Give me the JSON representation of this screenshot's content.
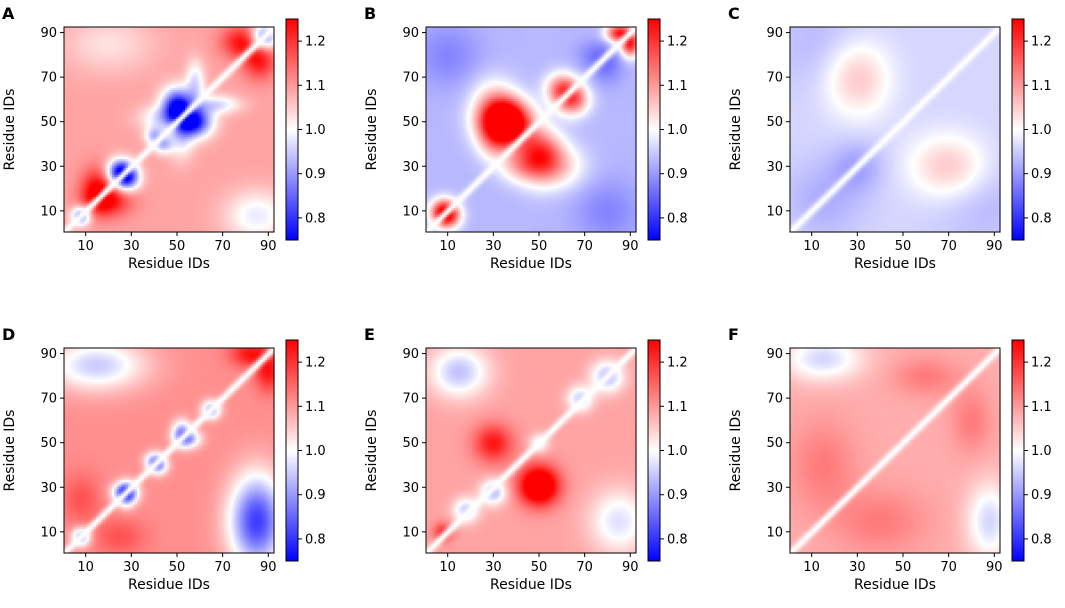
{
  "chart_data": {
    "type": "heatmap",
    "colormap": "bwr",
    "color_range": [
      0.75,
      1.25
    ],
    "colorbar_ticks": [
      "0.8",
      "0.9",
      "1.0",
      "1.1",
      "1.2"
    ],
    "colorbar_tick_values": [
      0.8,
      0.9,
      1.0,
      1.1,
      1.2
    ],
    "residue_range": [
      1,
      92
    ],
    "axis_ticks": [
      "10",
      "30",
      "50",
      "70",
      "90"
    ],
    "axis_tick_values": [
      10,
      30,
      50,
      70,
      90
    ],
    "xlabel": "Residue IDs",
    "ylabel": "Residue IDs",
    "panels": [
      {
        "label": "A",
        "base": 1.09,
        "features": [
          {
            "x": 88,
            "y": 88,
            "sx": 4,
            "sy": 4,
            "a": -0.24,
            "sym": false
          },
          {
            "x": 78,
            "y": 86,
            "sx": 6,
            "sy": 5,
            "a": 0.14,
            "sym": true
          },
          {
            "x": 68,
            "y": 58,
            "sx": 7,
            "sy": 3,
            "a": -0.12,
            "sym": true
          },
          {
            "x": 60,
            "y": 50,
            "sx": 5,
            "sy": 5,
            "a": -0.18,
            "sym": true
          },
          {
            "x": 52,
            "y": 46,
            "sx": 4,
            "sy": 8,
            "a": -0.14,
            "sym": true
          },
          {
            "x": 50,
            "y": 56,
            "sx": 4,
            "sy": 4,
            "a": -0.14,
            "sym": true
          },
          {
            "x": 40,
            "y": 44,
            "sx": 3,
            "sy": 3,
            "a": -0.14,
            "sym": true
          },
          {
            "x": 25,
            "y": 28,
            "sx": 4,
            "sy": 4,
            "a": -0.26,
            "sym": true
          },
          {
            "x": 8,
            "y": 8,
            "sx": 3,
            "sy": 3,
            "a": -0.22,
            "sym": false
          },
          {
            "x": 20,
            "y": 15,
            "sx": 7,
            "sy": 5,
            "a": 0.14,
            "sym": true
          },
          {
            "x": 85,
            "y": 8,
            "sx": 10,
            "sy": 8,
            "a": -0.11,
            "sym": false
          },
          {
            "x": 20,
            "y": 85,
            "sx": 14,
            "sy": 9,
            "a": -0.06,
            "sym": false
          }
        ]
      },
      {
        "label": "B",
        "base": 0.93,
        "features": [
          {
            "x": 50,
            "y": 35,
            "sx": 7,
            "sy": 8,
            "a": 0.27,
            "sym": true
          },
          {
            "x": 35,
            "y": 50,
            "sx": 7,
            "sy": 7,
            "a": 0.24,
            "sym": false
          },
          {
            "x": 60,
            "y": 65,
            "sx": 5,
            "sy": 5,
            "a": 0.2,
            "sym": true
          },
          {
            "x": 85,
            "y": 90,
            "sx": 4,
            "sy": 3,
            "a": 0.28,
            "sym": true
          },
          {
            "x": 10,
            "y": 8,
            "sx": 4,
            "sy": 4,
            "a": 0.22,
            "sym": true
          },
          {
            "x": 60,
            "y": 30,
            "sx": 8,
            "sy": 7,
            "a": 0.09,
            "sym": true
          },
          {
            "x": 40,
            "y": 30,
            "sx": 6,
            "sy": 5,
            "a": 0.08,
            "sym": true
          },
          {
            "x": 10,
            "y": 80,
            "sx": 10,
            "sy": 10,
            "a": -0.05,
            "sym": true
          },
          {
            "x": 75,
            "y": 80,
            "sx": 6,
            "sy": 5,
            "a": -0.05,
            "sym": true
          }
        ]
      },
      {
        "label": "C",
        "base": 0.96,
        "features": [
          {
            "x": 70,
            "y": 30,
            "sx": 12,
            "sy": 10,
            "a": 0.1,
            "sym": true
          },
          {
            "x": 30,
            "y": 30,
            "sx": 8,
            "sy": 8,
            "a": -0.05,
            "sym": false
          },
          {
            "x": 15,
            "y": 15,
            "sx": 12,
            "sy": 12,
            "a": -0.04,
            "sym": false
          },
          {
            "x": 85,
            "y": 15,
            "sx": 15,
            "sy": 15,
            "a": -0.03,
            "sym": true
          }
        ]
      },
      {
        "label": "D",
        "base": 1.11,
        "features": [
          {
            "x": 15,
            "y": 85,
            "sx": 15,
            "sy": 8,
            "a": -0.16,
            "sym": true
          },
          {
            "x": 85,
            "y": 15,
            "sx": 9,
            "sy": 14,
            "a": -0.14,
            "sym": false
          },
          {
            "x": 82,
            "y": 90,
            "sx": 6,
            "sy": 4,
            "a": 0.12,
            "sym": true
          },
          {
            "x": 8,
            "y": 25,
            "sx": 6,
            "sy": 8,
            "a": 0.06,
            "sym": true
          },
          {
            "x": 65,
            "y": 65,
            "sx": 3,
            "sy": 3,
            "a": -0.2,
            "sym": false
          },
          {
            "x": 52,
            "y": 55,
            "sx": 3,
            "sy": 4,
            "a": -0.18,
            "sym": true
          },
          {
            "x": 40,
            "y": 42,
            "sx": 3,
            "sy": 3,
            "a": -0.16,
            "sym": true
          },
          {
            "x": 27,
            "y": 28,
            "sx": 4,
            "sy": 3,
            "a": -0.2,
            "sym": true
          },
          {
            "x": 8,
            "y": 8,
            "sx": 3,
            "sy": 3,
            "a": -0.2,
            "sym": false
          }
        ]
      },
      {
        "label": "E",
        "base": 1.09,
        "features": [
          {
            "x": 15,
            "y": 82,
            "sx": 9,
            "sy": 8,
            "a": -0.15,
            "sym": false
          },
          {
            "x": 85,
            "y": 15,
            "sx": 9,
            "sy": 10,
            "a": -0.12,
            "sym": false
          },
          {
            "x": 30,
            "y": 50,
            "sx": 6,
            "sy": 6,
            "a": 0.14,
            "sym": true
          },
          {
            "x": 50,
            "y": 32,
            "sx": 6,
            "sy": 6,
            "a": 0.14,
            "sym": false
          },
          {
            "x": 80,
            "y": 80,
            "sx": 5,
            "sy": 5,
            "a": -0.16,
            "sym": false
          },
          {
            "x": 68,
            "y": 70,
            "sx": 4,
            "sy": 4,
            "a": -0.14,
            "sym": false
          },
          {
            "x": 30,
            "y": 28,
            "sx": 4,
            "sy": 4,
            "a": -0.16,
            "sym": false
          },
          {
            "x": 18,
            "y": 20,
            "sx": 4,
            "sy": 4,
            "a": -0.14,
            "sym": false
          },
          {
            "x": 8,
            "y": 10,
            "sx": 3,
            "sy": 3,
            "a": 0.12,
            "sym": false
          },
          {
            "x": 50,
            "y": 50,
            "sx": 3,
            "sy": 3,
            "a": -0.1,
            "sym": false
          }
        ]
      },
      {
        "label": "F",
        "base": 1.08,
        "features": [
          {
            "x": 15,
            "y": 88,
            "sx": 12,
            "sy": 7,
            "a": -0.12,
            "sym": false
          },
          {
            "x": 88,
            "y": 15,
            "sx": 7,
            "sy": 12,
            "a": -0.12,
            "sym": false
          },
          {
            "x": 15,
            "y": 40,
            "sx": 10,
            "sy": 14,
            "a": 0.05,
            "sym": false
          },
          {
            "x": 40,
            "y": 15,
            "sx": 14,
            "sy": 10,
            "a": 0.05,
            "sym": false
          },
          {
            "x": 60,
            "y": 80,
            "sx": 10,
            "sy": 6,
            "a": 0.05,
            "sym": false
          },
          {
            "x": 80,
            "y": 60,
            "sx": 6,
            "sy": 10,
            "a": 0.05,
            "sym": false
          }
        ]
      }
    ]
  }
}
